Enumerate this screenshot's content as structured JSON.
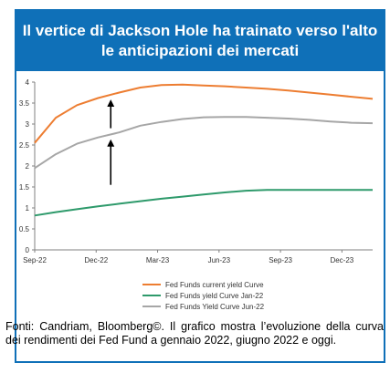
{
  "title": "Il vertice di Jackson Hole ha trainato verso l'alto le anticipazioni dei mercati",
  "caption": "Fonti: Candriam, Bloomberg©. Il grafico mostra l’evoluzione della curva dei rendimenti dei Fed Fund a gennaio 2022, giugno 2022 e oggi.",
  "colors": {
    "header": "#0f70b8",
    "current": "#ed7d31",
    "jan22": "#2e9a6b",
    "jun22": "#a6a6a6",
    "arrow": "#000000"
  },
  "chart_data": {
    "type": "line",
    "ylim": [
      0,
      4
    ],
    "yticks": [
      "0",
      "0.5",
      "1",
      "1.5",
      "2",
      "2.5",
      "3",
      "3.5",
      "4"
    ],
    "xticks": [
      "Sep-22",
      "Dec-22",
      "Mar-23",
      "Jun-23",
      "Sep-23",
      "Dec-23"
    ],
    "x_range": [
      0,
      16
    ],
    "grid": false,
    "legend_position": "bottom",
    "series": [
      {
        "name": "Fed Funds current yield Curve",
        "color": "#ed7d31",
        "x": [
          0,
          1,
          2,
          3,
          4,
          5,
          6,
          7,
          8,
          9,
          10,
          11,
          12,
          13,
          14,
          15,
          16
        ],
        "values": [
          2.55,
          3.15,
          3.45,
          3.62,
          3.75,
          3.87,
          3.93,
          3.94,
          3.92,
          3.9,
          3.87,
          3.84,
          3.8,
          3.75,
          3.7,
          3.65,
          3.6
        ]
      },
      {
        "name": "Fed Funds yield Curve Jan-22",
        "color": "#2e9a6b",
        "x": [
          0,
          1,
          2,
          3,
          4,
          5,
          6,
          7,
          8,
          9,
          10,
          11,
          12,
          13,
          14,
          15,
          16
        ],
        "values": [
          0.82,
          0.9,
          0.97,
          1.04,
          1.1,
          1.16,
          1.22,
          1.27,
          1.32,
          1.37,
          1.41,
          1.43,
          1.43,
          1.43,
          1.43,
          1.43,
          1.43
        ]
      },
      {
        "name": "Fed Funds Yield Curve Jun-22",
        "color": "#a6a6a6",
        "x": [
          0,
          1,
          2,
          3,
          4,
          5,
          6,
          7,
          8,
          9,
          10,
          11,
          12,
          13,
          14,
          15,
          16
        ],
        "values": [
          1.95,
          2.28,
          2.53,
          2.68,
          2.8,
          2.96,
          3.05,
          3.12,
          3.16,
          3.17,
          3.17,
          3.15,
          3.13,
          3.1,
          3.06,
          3.03,
          3.02
        ]
      }
    ],
    "arrows": [
      {
        "x": 3.6,
        "from": 1.55,
        "to": 2.6
      },
      {
        "x": 3.6,
        "from": 2.9,
        "to": 3.55
      }
    ]
  }
}
